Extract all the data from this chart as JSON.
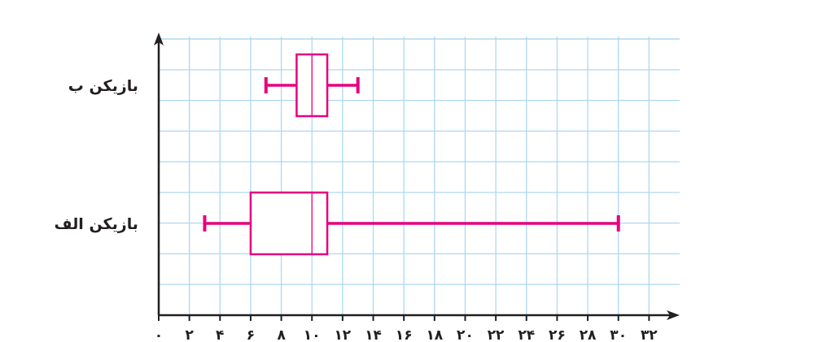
{
  "chart_data": {
    "type": "box",
    "orientation": "horizontal",
    "categories": [
      "بازیکن ب",
      "بازیکن الف"
    ],
    "boxes": [
      {
        "low": 7,
        "q1": 9,
        "median": 10,
        "q3": 11,
        "high": 13
      },
      {
        "low": 3,
        "q1": 6,
        "median": 10,
        "q3": 11,
        "high": 30
      }
    ],
    "color": "#e6007e",
    "xlim": [
      0,
      34
    ],
    "xticks": [
      {
        "value": 0,
        "label": "۰"
      },
      {
        "value": 2,
        "label": "۲"
      },
      {
        "value": 4,
        "label": "۴"
      },
      {
        "value": 6,
        "label": "۶"
      },
      {
        "value": 8,
        "label": "۸"
      },
      {
        "value": 10,
        "label": "۱۰"
      },
      {
        "value": 12,
        "label": "۱۲"
      },
      {
        "value": 14,
        "label": "۱۴"
      },
      {
        "value": 16,
        "label": "۱۶"
      },
      {
        "value": 18,
        "label": "۱۸"
      },
      {
        "value": 20,
        "label": "۲۰"
      },
      {
        "value": 22,
        "label": "۲۲"
      },
      {
        "value": 24,
        "label": "۲۴"
      },
      {
        "value": 26,
        "label": "۲۶"
      },
      {
        "value": 28,
        "label": "۲۸"
      },
      {
        "value": 30,
        "label": "۳۰"
      },
      {
        "value": 32,
        "label": "۳۲"
      }
    ],
    "grid": true
  }
}
